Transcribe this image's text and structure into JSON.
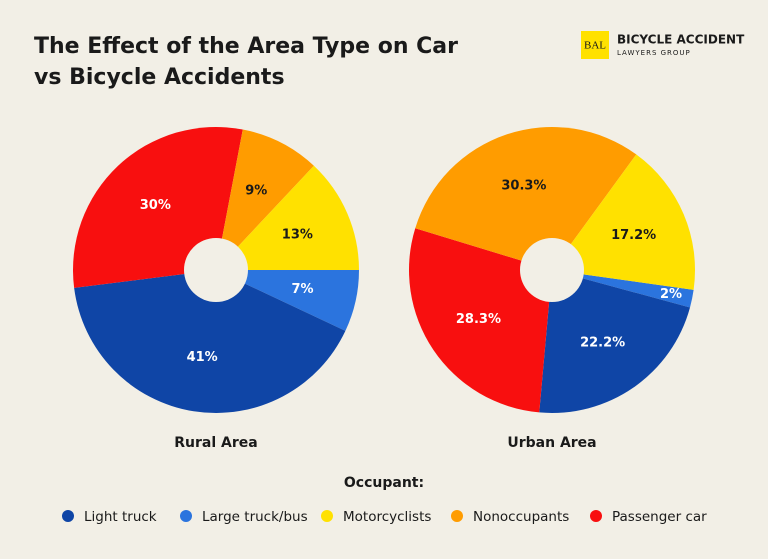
{
  "title": "The Effect of the Area Type on Car vs Bicycle Accidents",
  "logo": {
    "mark": "BAL",
    "name": "BICYCLE ACCIDENT",
    "tagline": "LAWYERS GROUP"
  },
  "legend_title": "Occupant:",
  "chart_data": [
    {
      "type": "pie",
      "title": "Rural Area",
      "categories": [
        "Light truck",
        "Large truck/bus",
        "Motorcyclists",
        "Nonoccupants",
        "Passenger car"
      ],
      "colors": [
        "#0f45a6",
        "#2b74de",
        "#ffe100",
        "#ff9c00",
        "#f80f0f"
      ],
      "values": [
        41,
        7,
        13,
        9,
        30
      ],
      "value_labels": [
        "41%",
        "7%",
        "13%",
        "9%",
        "30%"
      ]
    },
    {
      "type": "pie",
      "title": "Urban Area",
      "categories": [
        "Light truck",
        "Large truck/bus",
        "Motorcyclists",
        "Nonoccupants",
        "Passenger car"
      ],
      "colors": [
        "#0f45a6",
        "#2b74de",
        "#ffe100",
        "#ff9c00",
        "#f80f0f"
      ],
      "values": [
        22.2,
        2,
        17.2,
        30.3,
        28.3
      ],
      "value_labels": [
        "22.2%",
        "2%",
        "17.2%",
        "30.3%",
        "28.3%"
      ]
    }
  ]
}
